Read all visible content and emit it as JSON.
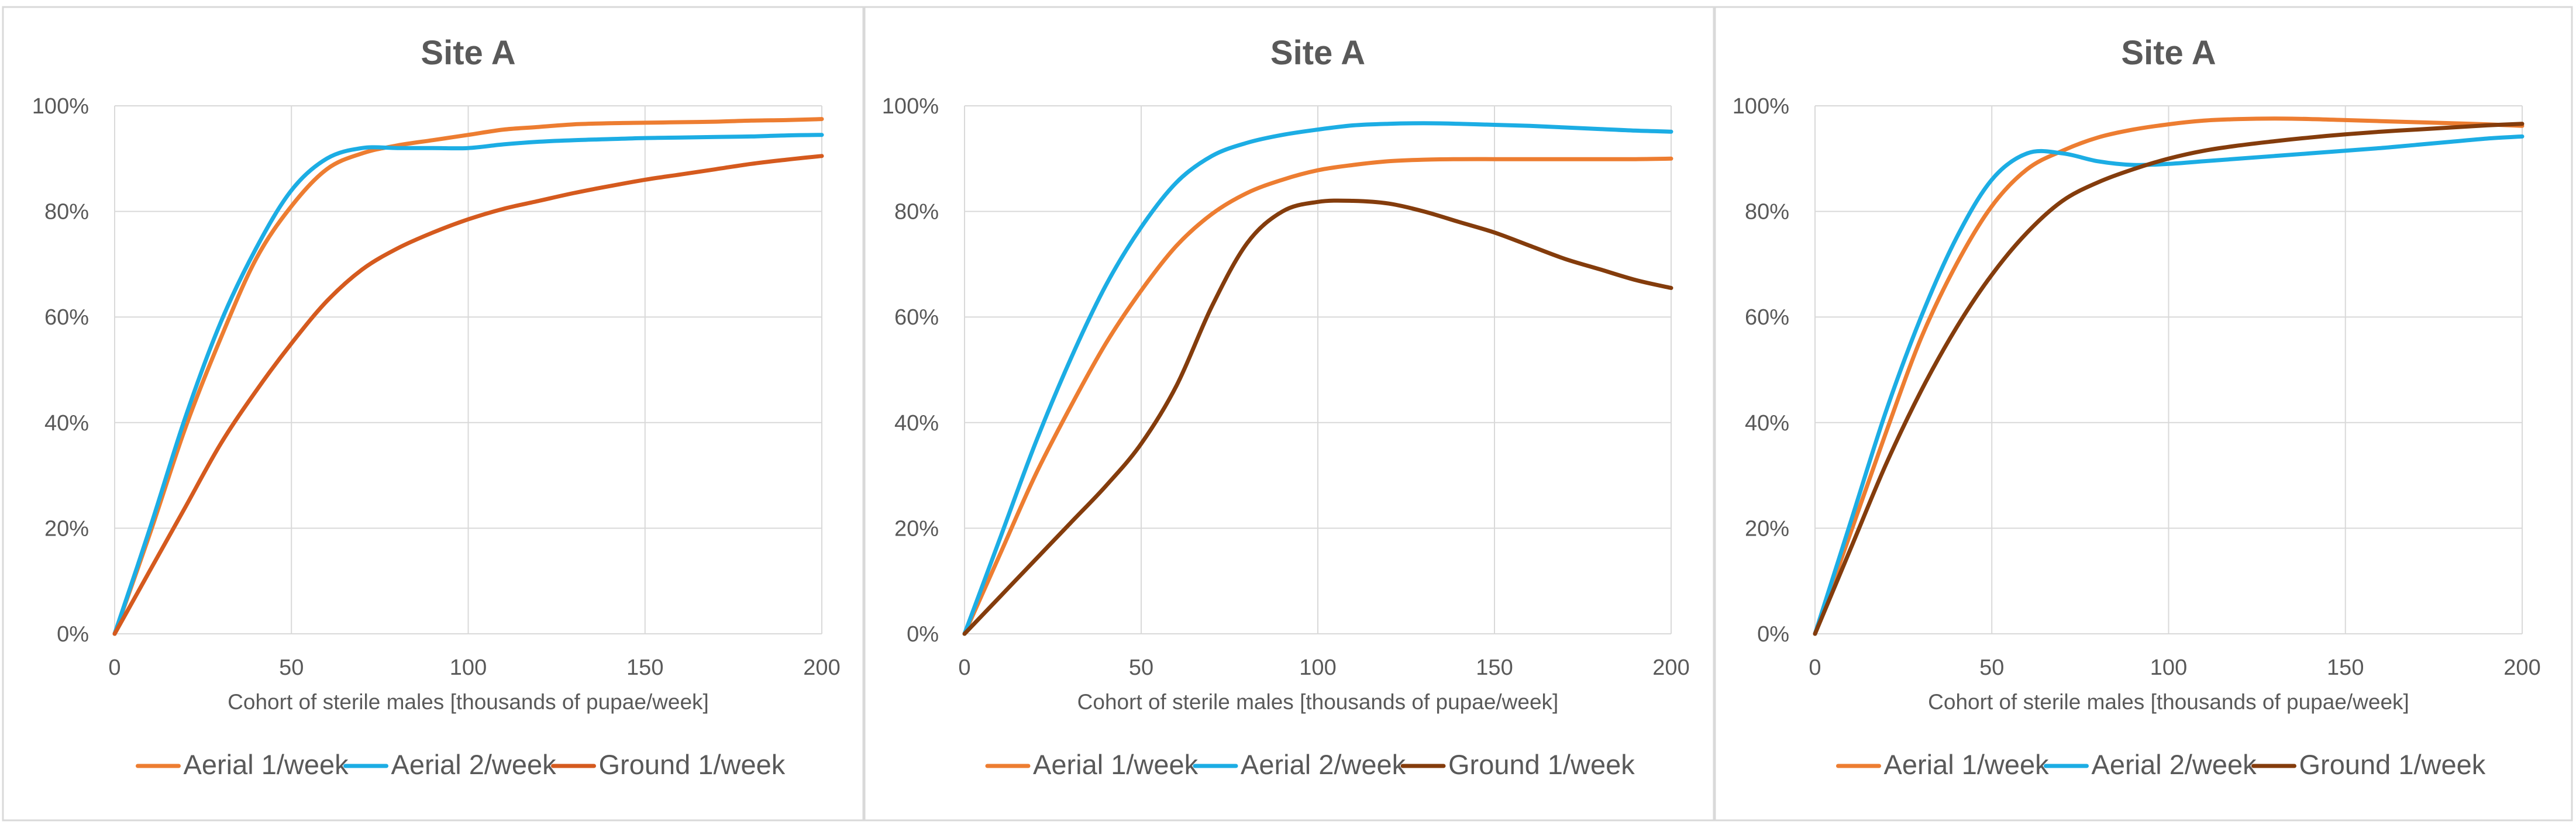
{
  "chart_data": [
    {
      "type": "line",
      "title": "Site A",
      "xlabel": "Cohort of sterile males [thousands of pupae/week]",
      "ylabel": "",
      "xlim": [
        0,
        200
      ],
      "ylim": [
        0,
        1
      ],
      "x_ticks": [
        "0",
        "50",
        "100",
        "150",
        "200"
      ],
      "y_ticks": [
        "0%",
        "20%",
        "40%",
        "60%",
        "80%",
        "100%"
      ],
      "grid": true,
      "legend_position": "bottom",
      "series": [
        {
          "name": "Aerial 1/week",
          "color": "#ED7D31",
          "x": [
            0,
            10,
            20,
            30,
            40,
            50,
            60,
            70,
            80,
            90,
            100,
            110,
            120,
            130,
            140,
            150,
            160,
            170,
            180,
            190,
            200
          ],
          "y": [
            0,
            0.19,
            0.39,
            0.56,
            0.71,
            0.81,
            0.88,
            0.91,
            0.925,
            0.935,
            0.945,
            0.955,
            0.96,
            0.965,
            0.967,
            0.968,
            0.969,
            0.97,
            0.972,
            0.973,
            0.975
          ]
        },
        {
          "name": "Aerial 2/week",
          "color": "#1CADE4",
          "x": [
            0,
            10,
            20,
            30,
            40,
            50,
            60,
            70,
            80,
            90,
            100,
            110,
            120,
            130,
            140,
            150,
            160,
            170,
            180,
            190,
            200
          ],
          "y": [
            0,
            0.2,
            0.41,
            0.59,
            0.73,
            0.84,
            0.9,
            0.92,
            0.92,
            0.92,
            0.92,
            0.927,
            0.932,
            0.935,
            0.937,
            0.939,
            0.94,
            0.941,
            0.942,
            0.944,
            0.945
          ]
        },
        {
          "name": "Ground 1/week",
          "color": "#D55A1E",
          "x": [
            0,
            10,
            20,
            30,
            40,
            50,
            60,
            70,
            80,
            90,
            100,
            110,
            120,
            130,
            140,
            150,
            160,
            170,
            180,
            190,
            200
          ],
          "y": [
            0,
            0.12,
            0.24,
            0.36,
            0.46,
            0.55,
            0.63,
            0.69,
            0.73,
            0.76,
            0.785,
            0.805,
            0.82,
            0.835,
            0.848,
            0.86,
            0.87,
            0.88,
            0.89,
            0.898,
            0.905
          ]
        }
      ]
    },
    {
      "type": "line",
      "title": "Site A",
      "xlabel": "Cohort of sterile males [thousands of pupae/week]",
      "ylabel": "",
      "xlim": [
        0,
        200
      ],
      "ylim": [
        0,
        1
      ],
      "x_ticks": [
        "0",
        "50",
        "100",
        "150",
        "200"
      ],
      "y_ticks": [
        "0%",
        "20%",
        "40%",
        "60%",
        "80%",
        "100%"
      ],
      "grid": true,
      "legend_position": "bottom",
      "series": [
        {
          "name": "Aerial 1/week",
          "color": "#ED7D31",
          "x": [
            0,
            10,
            20,
            30,
            40,
            50,
            60,
            70,
            80,
            90,
            100,
            110,
            120,
            130,
            140,
            150,
            160,
            170,
            180,
            190,
            200
          ],
          "y": [
            0,
            0.15,
            0.3,
            0.43,
            0.55,
            0.65,
            0.735,
            0.795,
            0.835,
            0.86,
            0.878,
            0.888,
            0.895,
            0.898,
            0.899,
            0.899,
            0.899,
            0.899,
            0.899,
            0.899,
            0.9
          ]
        },
        {
          "name": "Aerial 2/week",
          "color": "#1CADE4",
          "x": [
            0,
            10,
            20,
            30,
            40,
            50,
            60,
            70,
            80,
            90,
            100,
            110,
            120,
            130,
            140,
            150,
            160,
            170,
            180,
            190,
            200
          ],
          "y": [
            0,
            0.18,
            0.36,
            0.52,
            0.66,
            0.77,
            0.855,
            0.905,
            0.93,
            0.945,
            0.955,
            0.963,
            0.966,
            0.967,
            0.966,
            0.964,
            0.962,
            0.959,
            0.956,
            0.953,
            0.951
          ]
        },
        {
          "name": "Ground 1/week",
          "color": "#843C0C",
          "x": [
            0,
            10,
            20,
            30,
            40,
            50,
            60,
            70,
            80,
            90,
            100,
            110,
            120,
            130,
            140,
            150,
            160,
            170,
            180,
            190,
            200
          ],
          "y": [
            0,
            0.07,
            0.14,
            0.21,
            0.28,
            0.36,
            0.47,
            0.62,
            0.74,
            0.8,
            0.818,
            0.82,
            0.815,
            0.8,
            0.78,
            0.76,
            0.735,
            0.71,
            0.69,
            0.67,
            0.655
          ]
        }
      ]
    },
    {
      "type": "line",
      "title": "Site A",
      "xlabel": "Cohort of sterile males [thousands of pupae/week]",
      "ylabel": "",
      "xlim": [
        0,
        200
      ],
      "ylim": [
        0,
        1
      ],
      "x_ticks": [
        "0",
        "50",
        "100",
        "150",
        "200"
      ],
      "y_ticks": [
        "0%",
        "20%",
        "40%",
        "60%",
        "80%",
        "100%"
      ],
      "grid": true,
      "legend_position": "bottom",
      "series": [
        {
          "name": "Aerial 1/week",
          "color": "#ED7D31",
          "x": [
            0,
            10,
            20,
            30,
            40,
            50,
            60,
            70,
            80,
            90,
            100,
            110,
            120,
            130,
            140,
            150,
            160,
            170,
            180,
            190,
            200
          ],
          "y": [
            0,
            0.19,
            0.38,
            0.56,
            0.7,
            0.81,
            0.88,
            0.915,
            0.94,
            0.955,
            0.965,
            0.972,
            0.975,
            0.976,
            0.975,
            0.973,
            0.971,
            0.969,
            0.967,
            0.965,
            0.962
          ]
        },
        {
          "name": "Aerial 2/week",
          "color": "#1CADE4",
          "x": [
            0,
            10,
            20,
            30,
            40,
            50,
            60,
            70,
            80,
            90,
            100,
            110,
            120,
            130,
            140,
            150,
            160,
            170,
            180,
            190,
            200
          ],
          "y": [
            0,
            0.21,
            0.42,
            0.6,
            0.75,
            0.86,
            0.91,
            0.91,
            0.895,
            0.888,
            0.89,
            0.895,
            0.9,
            0.905,
            0.91,
            0.915,
            0.92,
            0.926,
            0.932,
            0.938,
            0.942
          ]
        },
        {
          "name": "Ground 1/week",
          "color": "#843C0C",
          "x": [
            0,
            10,
            20,
            30,
            40,
            50,
            60,
            70,
            80,
            90,
            100,
            110,
            120,
            130,
            140,
            150,
            160,
            170,
            180,
            190,
            200
          ],
          "y": [
            0,
            0.16,
            0.32,
            0.46,
            0.58,
            0.68,
            0.76,
            0.82,
            0.855,
            0.88,
            0.9,
            0.915,
            0.925,
            0.933,
            0.94,
            0.946,
            0.951,
            0.955,
            0.959,
            0.963,
            0.966
          ]
        }
      ]
    }
  ]
}
